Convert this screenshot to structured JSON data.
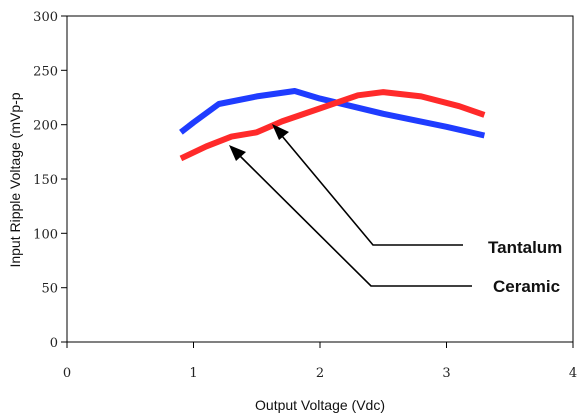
{
  "chart_data": {
    "type": "line",
    "title": "",
    "xlabel": "Output Voltage (Vdc)",
    "ylabel": "Input Ripple Voltage (mVp-p",
    "xlim": [
      0,
      4
    ],
    "ylim": [
      0,
      300
    ],
    "x_ticks": [
      "0",
      "1",
      "2",
      "3",
      "4"
    ],
    "y_ticks": [
      "0",
      "50",
      "100",
      "150",
      "200",
      "250",
      "300"
    ],
    "grid": false,
    "series": [
      {
        "name": "Tantalum",
        "color": "#1f3cff",
        "points": [
          [
            0.9,
            193
          ],
          [
            1.0,
            202
          ],
          [
            1.2,
            219
          ],
          [
            1.5,
            226
          ],
          [
            1.8,
            231
          ],
          [
            2.0,
            224
          ],
          [
            2.5,
            210
          ],
          [
            3.0,
            198
          ],
          [
            3.3,
            190
          ]
        ]
      },
      {
        "name": "Ceramic",
        "color": "#ff2a2a",
        "points": [
          [
            0.9,
            169
          ],
          [
            1.1,
            180
          ],
          [
            1.3,
            189
          ],
          [
            1.5,
            193
          ],
          [
            1.7,
            203
          ],
          [
            2.0,
            215
          ],
          [
            2.3,
            227
          ],
          [
            2.5,
            230
          ],
          [
            2.8,
            226
          ],
          [
            3.1,
            217
          ],
          [
            3.3,
            209
          ]
        ]
      }
    ]
  }
}
